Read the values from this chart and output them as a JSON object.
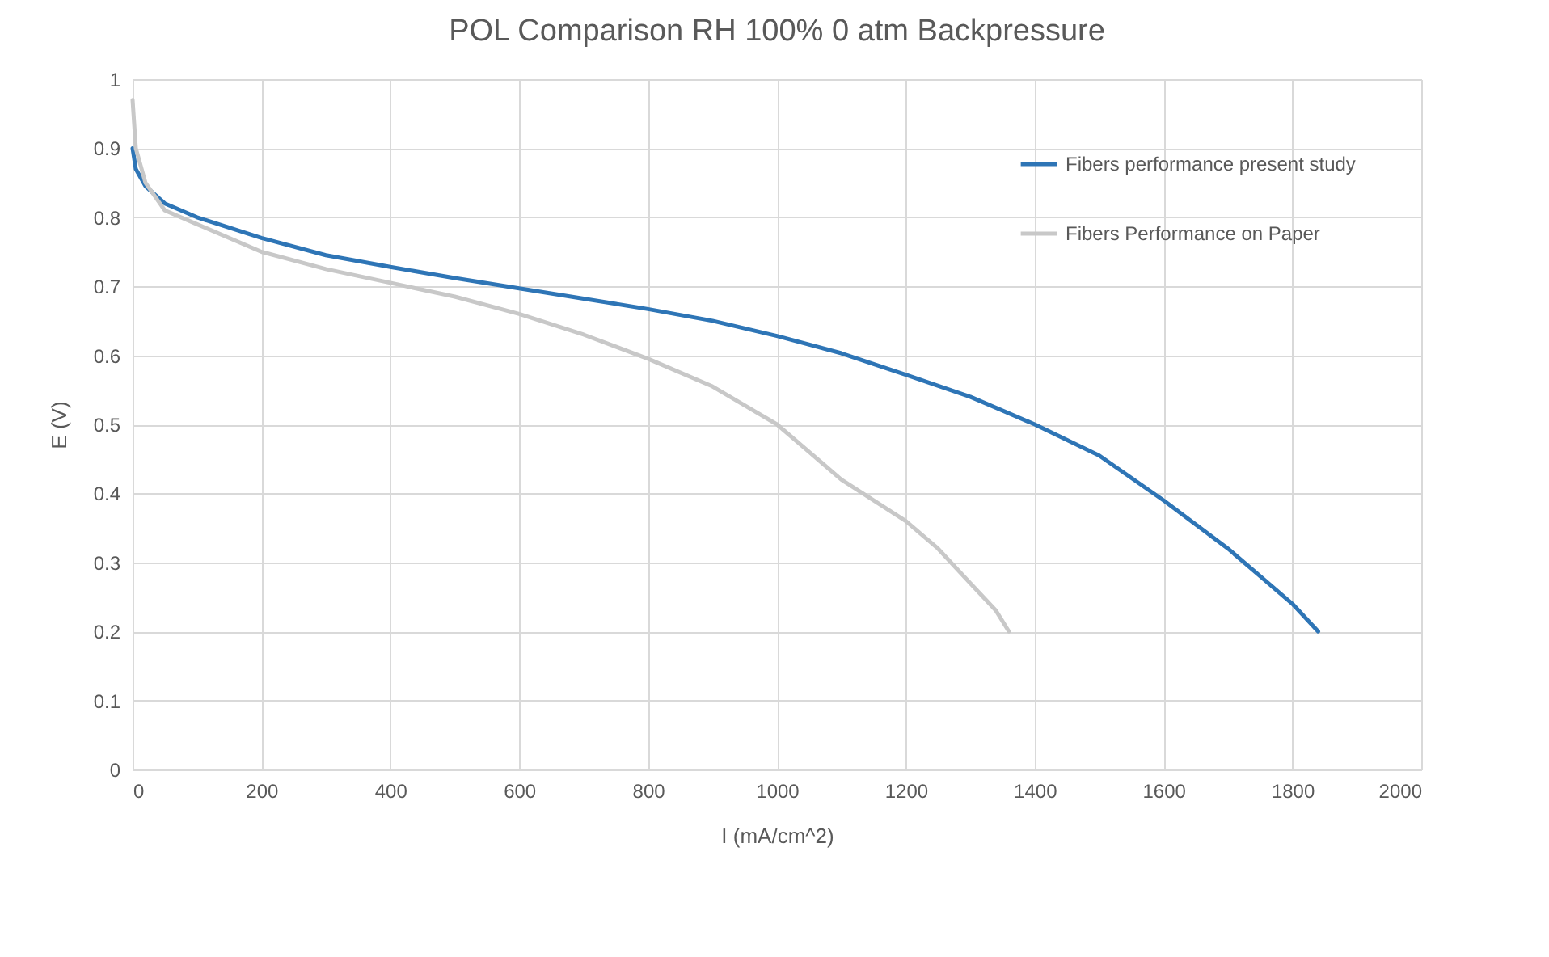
{
  "chart_data": {
    "type": "line",
    "title": "POL Comparison  RH 100% 0 atm Backpressure",
    "xlabel": "I (mA/cm^2)",
    "ylabel": "E (V)",
    "xlim": [
      0,
      2000
    ],
    "xticks": [
      0,
      200,
      400,
      600,
      800,
      1000,
      1200,
      1400,
      1600,
      1800,
      2000
    ],
    "ylim": [
      0,
      1
    ],
    "yticks": [
      0,
      0.1,
      0.2,
      0.3,
      0.4,
      0.5,
      0.6,
      0.7,
      0.8,
      0.9,
      1
    ],
    "grid": true,
    "legend": "top right",
    "marker": "none",
    "line_style": "solid",
    "series": [
      {
        "name": "Fibers performance present study",
        "color": "#2e75b6",
        "x": [
          0,
          5,
          20,
          50,
          100,
          200,
          300,
          400,
          500,
          600,
          700,
          800,
          900,
          1000,
          1100,
          1200,
          1300,
          1400,
          1500,
          1600,
          1700,
          1750,
          1800,
          1840
        ],
        "values": [
          0.9,
          0.87,
          0.845,
          0.82,
          0.8,
          0.77,
          0.745,
          0.728,
          0.712,
          0.697,
          0.682,
          0.667,
          0.65,
          0.628,
          0.603,
          0.572,
          0.54,
          0.5,
          0.455,
          0.39,
          0.32,
          0.28,
          0.24,
          0.2
        ]
      },
      {
        "name": "Fibers Performance on Paper",
        "color": "#c8c8c8",
        "x": [
          0,
          5,
          20,
          50,
          100,
          200,
          300,
          400,
          500,
          600,
          700,
          800,
          900,
          1000,
          1050,
          1100,
          1200,
          1250,
          1300,
          1340,
          1360
        ],
        "values": [
          0.97,
          0.9,
          0.85,
          0.81,
          0.79,
          0.75,
          0.725,
          0.705,
          0.685,
          0.66,
          0.63,
          0.595,
          0.555,
          0.5,
          0.46,
          0.42,
          0.36,
          0.32,
          0.27,
          0.23,
          0.2
        ]
      }
    ]
  }
}
